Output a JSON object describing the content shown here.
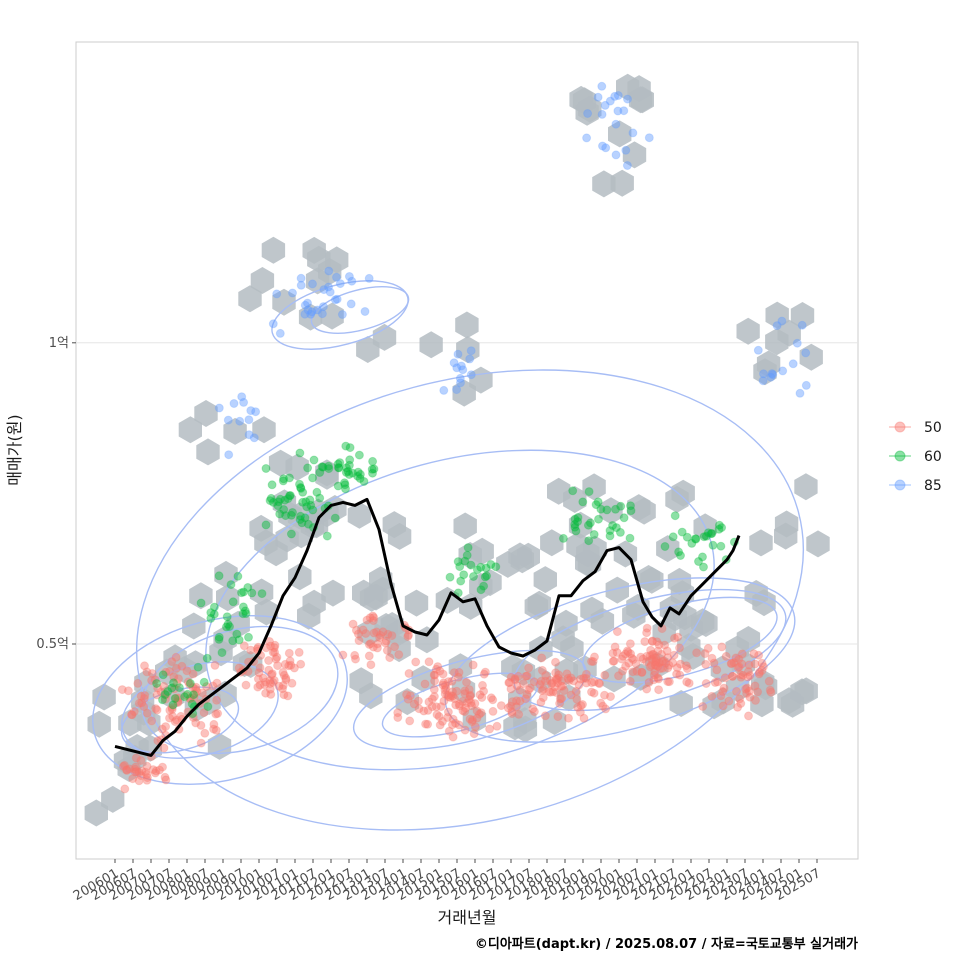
{
  "chart_data": {
    "type": "scatter",
    "xlabel": "거래년월",
    "ylabel": "매매가(원)",
    "caption": "©디아파트(dapt.kr) / 2025.08.07 / 자료=국토교통부 실거래가",
    "x_ticks": [
      "200601",
      "200607",
      "200701",
      "200707",
      "200801",
      "200807",
      "200901",
      "200907",
      "201001",
      "201007",
      "201101",
      "201107",
      "201201",
      "201207",
      "201301",
      "201307",
      "201401",
      "201407",
      "201501",
      "201507",
      "201601",
      "201607",
      "201701",
      "201707",
      "201801",
      "201807",
      "201901",
      "201907",
      "202001",
      "202007",
      "202101",
      "202107",
      "202201",
      "202207",
      "202301",
      "202307",
      "202401",
      "202407",
      "202501",
      "202507"
    ],
    "y_ticks": [
      {
        "value": 5000,
        "label": "0.5억"
      },
      {
        "value": 10000,
        "label": "1억"
      }
    ],
    "y_unit": "만원",
    "ylim": [
      1300,
      15300
    ],
    "grid": true,
    "legend_position": "right",
    "series": [
      {
        "name": "50",
        "color": "#F8766D"
      },
      {
        "name": "60",
        "color": "#00BA38"
      },
      {
        "name": "85",
        "color": "#619CFF"
      }
    ],
    "hexbin_color": "#b4bcc2",
    "contour_color": "#a7bdf5",
    "moving_average": {
      "color": "#000000",
      "points": [
        [
          "2006-01",
          3300
        ],
        [
          "2006-05",
          3250
        ],
        [
          "2006-09",
          3200
        ],
        [
          "2007-01",
          3150
        ],
        [
          "2007-05",
          3400
        ],
        [
          "2007-09",
          3550
        ],
        [
          "2008-01",
          3800
        ],
        [
          "2008-05",
          4000
        ],
        [
          "2008-09",
          4150
        ],
        [
          "2009-01",
          4300
        ],
        [
          "2009-05",
          4450
        ],
        [
          "2009-09",
          4600
        ],
        [
          "2010-01",
          4850
        ],
        [
          "2010-05",
          5300
        ],
        [
          "2010-09",
          5800
        ],
        [
          "2011-01",
          6100
        ],
        [
          "2011-05",
          6550
        ],
        [
          "2011-09",
          7100
        ],
        [
          "2012-01",
          7300
        ],
        [
          "2012-05",
          7350
        ],
        [
          "2012-09",
          7300
        ],
        [
          "2013-01",
          7400
        ],
        [
          "2013-05",
          6900
        ],
        [
          "2013-09",
          6000
        ],
        [
          "2014-01",
          5300
        ],
        [
          "2014-05",
          5200
        ],
        [
          "2014-09",
          5150
        ],
        [
          "2015-01",
          5400
        ],
        [
          "2015-05",
          5850
        ],
        [
          "2015-09",
          5700
        ],
        [
          "2016-01",
          5750
        ],
        [
          "2016-05",
          5300
        ],
        [
          "2016-09",
          4950
        ],
        [
          "2017-01",
          4850
        ],
        [
          "2017-05",
          4800
        ],
        [
          "2017-09",
          4900
        ],
        [
          "2018-01",
          5050
        ],
        [
          "2018-05",
          5800
        ],
        [
          "2018-09",
          5800
        ],
        [
          "2019-01",
          6050
        ],
        [
          "2019-05",
          6200
        ],
        [
          "2019-09",
          6550
        ],
        [
          "2020-01",
          6600
        ],
        [
          "2020-05",
          6400
        ],
        [
          "2020-09",
          5700
        ],
        [
          "2020-12",
          5450
        ],
        [
          "2021-03",
          5300
        ],
        [
          "2021-06",
          5600
        ],
        [
          "2021-09",
          5500
        ],
        [
          "2022-01",
          5800
        ],
        [
          "2022-05",
          6000
        ],
        [
          "2022-09",
          6200
        ],
        [
          "2023-01",
          6400
        ],
        [
          "2023-03",
          6550
        ],
        [
          "2023-05",
          6800
        ]
      ]
    },
    "annotations": []
  }
}
